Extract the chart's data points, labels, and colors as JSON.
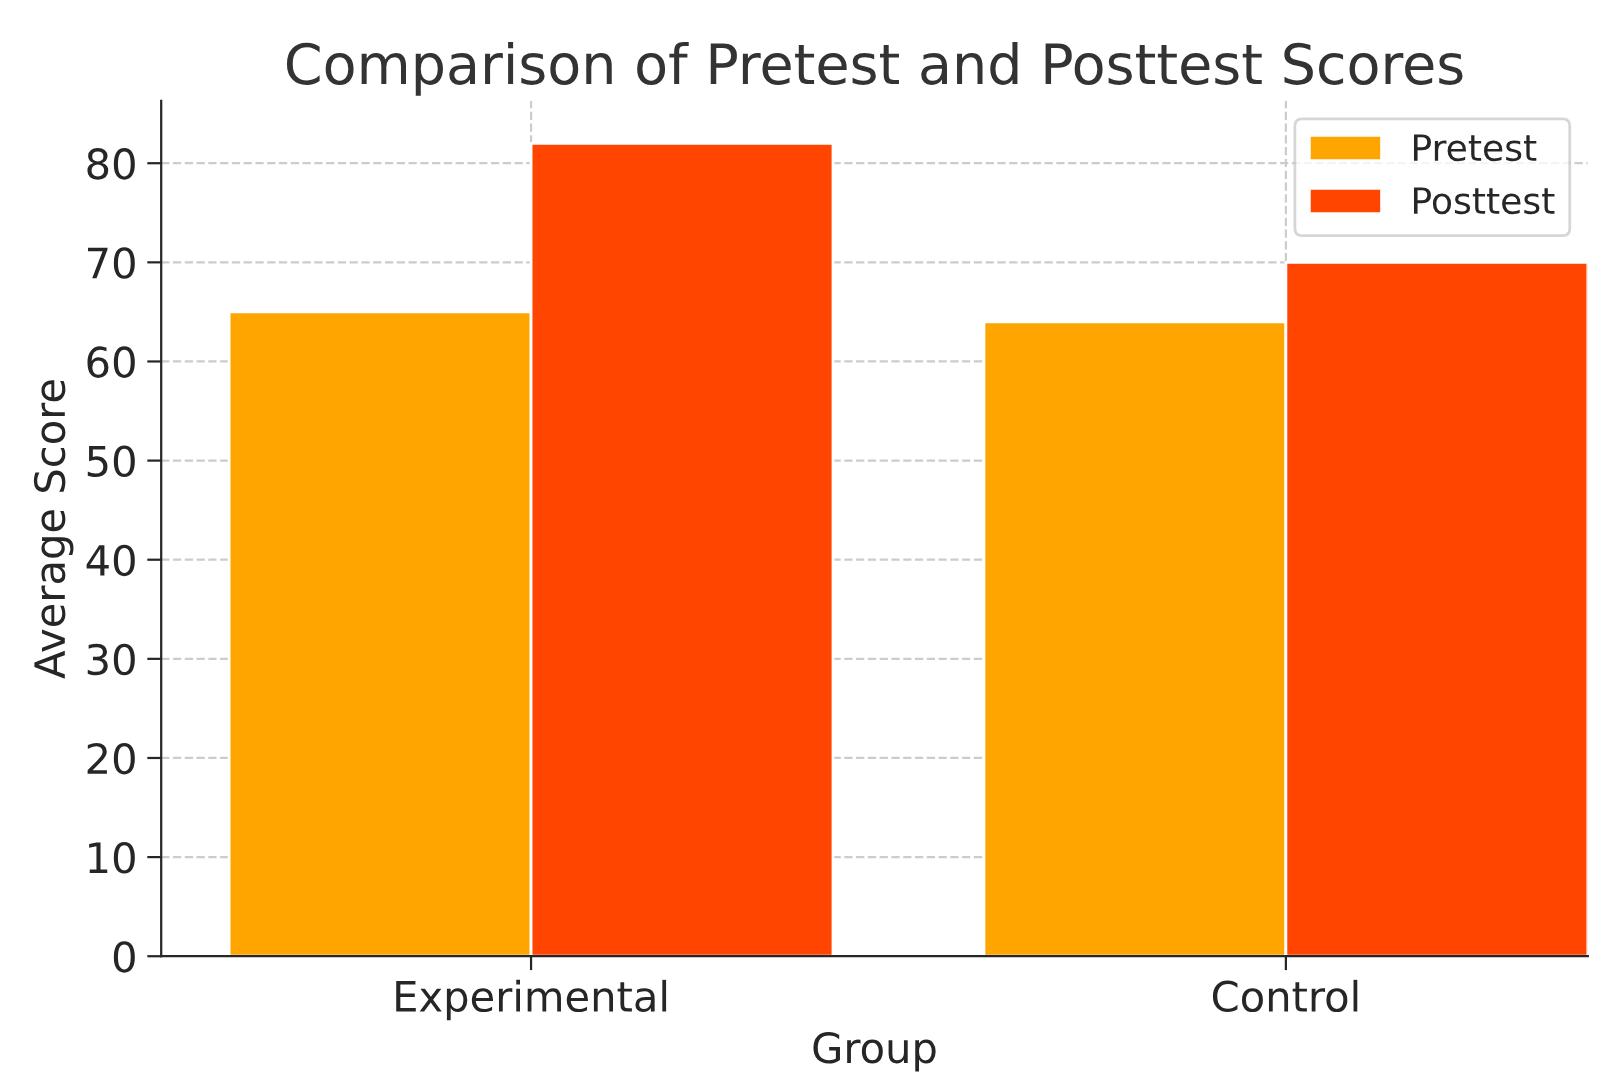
{
  "chart_data": {
    "type": "bar",
    "title": "Comparison of Pretest and Posttest Scores",
    "xlabel": "Group",
    "ylabel": "Average Score",
    "categories": [
      "Experimental",
      "Control"
    ],
    "series": [
      {
        "name": "Pretest",
        "color": "#ffa500",
        "values": [
          65,
          64
        ]
      },
      {
        "name": "Posttest",
        "color": "#ff4500",
        "values": [
          82,
          70
        ]
      }
    ],
    "ylim": [
      0,
      86.3
    ],
    "yticks": [
      0,
      10,
      20,
      30,
      40,
      50,
      60,
      70,
      80
    ],
    "grid": true,
    "legend": "top right"
  }
}
